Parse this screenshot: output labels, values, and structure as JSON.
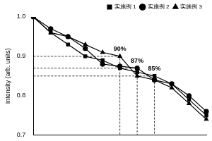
{
  "chart_data": {
    "type": "line",
    "y_label": "Intensity (arb. units)",
    "categories": [
      null,
      null,
      null,
      null,
      null,
      null,
      null,
      null,
      null,
      null,
      null
    ],
    "series": [
      {
        "name": "实施例 1",
        "color": "#000000",
        "marker": "square",
        "values": [
          1.0,
          0.96,
          0.93,
          0.9,
          0.89,
          0.87,
          0.86,
          0.85,
          0.83,
          0.79,
          0.75
        ]
      },
      {
        "name": "实施例 2",
        "color": "#000000",
        "marker": "circle",
        "values": [
          1.0,
          0.97,
          0.95,
          0.92,
          0.88,
          0.875,
          0.87,
          0.84,
          0.83,
          0.8,
          0.76
        ]
      },
      {
        "name": "实施例 3",
        "color": "#000000",
        "marker": "triangle",
        "values": [
          1.0,
          0.96,
          0.95,
          0.93,
          0.91,
          0.9,
          0.85,
          0.84,
          0.82,
          0.78,
          0.74
        ]
      }
    ],
    "annotations": [
      {
        "text": "90%",
        "x": 5,
        "y": 0.9
      },
      {
        "text": "87%",
        "x": 6,
        "y": 0.87
      },
      {
        "text": "85%",
        "x": 7,
        "y": 0.85
      }
    ],
    "ylim": [
      0.7,
      1.0
    ],
    "yticks": [
      0.7,
      0.8,
      0.9,
      {
        "value": 1,
        "label": "1.0"
      }
    ],
    "grid": false,
    "legend": "top-right",
    "tick_labels": "y"
  }
}
